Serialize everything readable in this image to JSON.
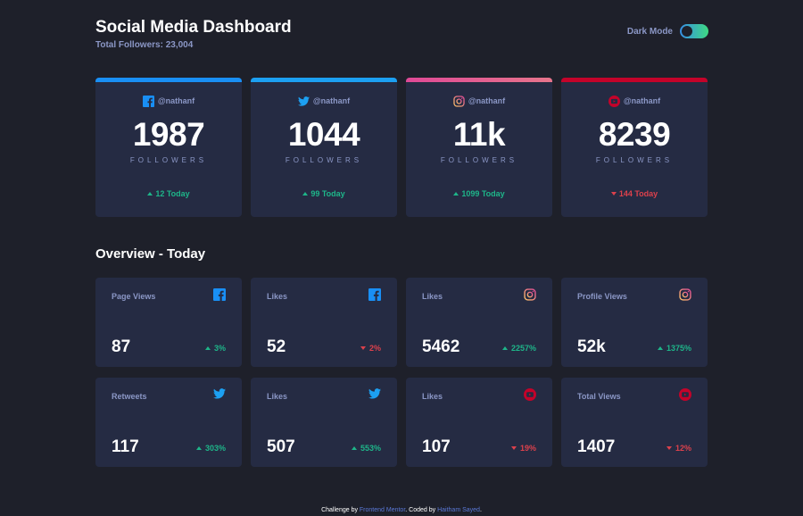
{
  "header": {
    "title": "Social Media Dashboard",
    "subtitle": "Total Followers: 23,004",
    "toggle_label": "Dark Mode"
  },
  "colors": {
    "background": "#1e202a",
    "card": "#252b43",
    "facebook": "#198ff5",
    "twitter": "#1ca0f2",
    "youtube": "#c4032a",
    "up": "#1eb589",
    "down": "#dc414c",
    "muted": "#8b97c6"
  },
  "cards": [
    {
      "network": "facebook",
      "icon": "facebook-icon",
      "handle": "@nathanf",
      "count": "1987",
      "unit": "FOLLOWERS",
      "today": "12 Today",
      "trend": "up"
    },
    {
      "network": "twitter",
      "icon": "twitter-icon",
      "handle": "@nathanf",
      "count": "1044",
      "unit": "FOLLOWERS",
      "today": "99 Today",
      "trend": "up"
    },
    {
      "network": "instagram",
      "icon": "instagram-icon",
      "handle": "@nathanf",
      "count": "11k",
      "unit": "FOLLOWERS",
      "today": "1099 Today",
      "trend": "up"
    },
    {
      "network": "youtube",
      "icon": "youtube-icon",
      "handle": "@nathanf",
      "count": "8239",
      "unit": "FOLLOWERS",
      "today": "144 Today",
      "trend": "down"
    }
  ],
  "overview": {
    "title": "Overview - Today",
    "tiles": [
      {
        "label": "Page Views",
        "icon": "facebook-icon",
        "value": "87",
        "change": "3%",
        "trend": "up"
      },
      {
        "label": "Likes",
        "icon": "facebook-icon",
        "value": "52",
        "change": "2%",
        "trend": "down"
      },
      {
        "label": "Likes",
        "icon": "instagram-icon",
        "value": "5462",
        "change": "2257%",
        "trend": "up"
      },
      {
        "label": "Profile Views",
        "icon": "instagram-icon",
        "value": "52k",
        "change": "1375%",
        "trend": "up"
      },
      {
        "label": "Retweets",
        "icon": "twitter-icon",
        "value": "117",
        "change": "303%",
        "trend": "up"
      },
      {
        "label": "Likes",
        "icon": "twitter-icon",
        "value": "507",
        "change": "553%",
        "trend": "up"
      },
      {
        "label": "Likes",
        "icon": "youtube-icon",
        "value": "107",
        "change": "19%",
        "trend": "down"
      },
      {
        "label": "Total Views",
        "icon": "youtube-icon",
        "value": "1407",
        "change": "12%",
        "trend": "down"
      }
    ]
  },
  "footer": {
    "prefix": "Challenge by ",
    "link1": "Frontend Mentor",
    "middle": ". Coded by ",
    "link2": "Haitham Sayed",
    "suffix": "."
  }
}
